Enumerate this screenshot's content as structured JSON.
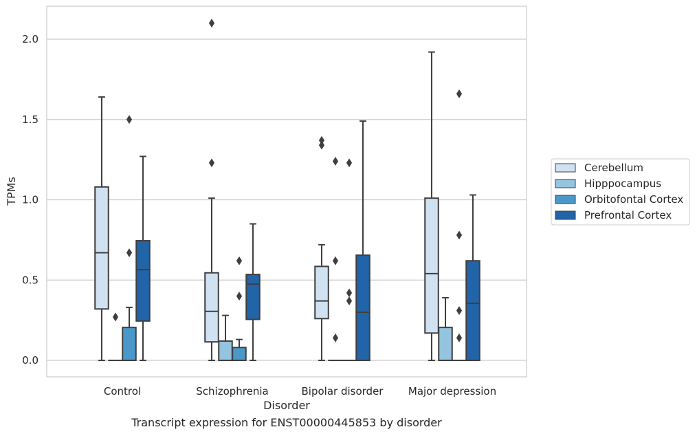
{
  "chart_data": {
    "type": "box",
    "xlabel": "Disorder",
    "ylabel": "TPMs",
    "ylim": [
      -0.1,
      2.2
    ],
    "yticks": [
      0.0,
      0.5,
      1.0,
      1.5,
      2.0
    ],
    "ytick_labels": [
      "0.0",
      "0.5",
      "1.0",
      "1.5",
      "2.0"
    ],
    "grid": "horizontal",
    "legend_position": "right",
    "categories": [
      "Control",
      "Schizophrenia",
      "Bipolar disorder",
      "Major depression"
    ],
    "series": [
      {
        "name": "Cerebellum",
        "color": "#d0e1f2",
        "boxes": [
          {
            "whislo": 0.0,
            "q1": 0.32,
            "med": 0.67,
            "q3": 1.08,
            "whishi": 1.64,
            "fliers": []
          },
          {
            "whislo": 0.0,
            "q1": 0.115,
            "med": 0.305,
            "q3": 0.545,
            "whishi": 1.01,
            "fliers": [
              1.23,
              2.1
            ]
          },
          {
            "whislo": 0.0,
            "q1": 0.26,
            "med": 0.37,
            "q3": 0.585,
            "whishi": 0.72,
            "fliers": [
              1.34,
              1.37
            ]
          },
          {
            "whislo": 0.0,
            "q1": 0.17,
            "med": 0.54,
            "q3": 1.01,
            "whishi": 1.92,
            "fliers": []
          }
        ]
      },
      {
        "name": "Hipppocampus",
        "color": "#94c4df",
        "boxes": [
          {
            "whislo": 0.0,
            "q1": 0.0,
            "med": 0.0,
            "q3": 0.0,
            "whishi": 0.0,
            "fliers": [
              0.27
            ]
          },
          {
            "whislo": 0.0,
            "q1": 0.0,
            "med": 0.0,
            "q3": 0.12,
            "whishi": 0.28,
            "fliers": []
          },
          {
            "whislo": 0.0,
            "q1": 0.0,
            "med": 0.0,
            "q3": 0.0,
            "whishi": 0.0,
            "fliers": [
              0.14,
              0.62,
              1.24
            ]
          },
          {
            "whislo": 0.0,
            "q1": 0.0,
            "med": 0.0,
            "q3": 0.205,
            "whishi": 0.39,
            "fliers": []
          }
        ]
      },
      {
        "name": "Orbitofontal Cortex",
        "color": "#4a98c9",
        "boxes": [
          {
            "whislo": 0.0,
            "q1": 0.0,
            "med": 0.0,
            "q3": 0.205,
            "whishi": 0.33,
            "fliers": [
              0.67,
              1.5
            ]
          },
          {
            "whislo": 0.0,
            "q1": 0.0,
            "med": 0.0,
            "q3": 0.08,
            "whishi": 0.13,
            "fliers": [
              0.4,
              0.62
            ]
          },
          {
            "whislo": 0.0,
            "q1": 0.0,
            "med": 0.0,
            "q3": 0.0,
            "whishi": 0.0,
            "fliers": [
              0.37,
              0.42,
              1.23
            ]
          },
          {
            "whislo": 0.0,
            "q1": 0.0,
            "med": 0.0,
            "q3": 0.0,
            "whishi": 0.0,
            "fliers": [
              0.14,
              0.31,
              0.78,
              1.66
            ]
          }
        ]
      },
      {
        "name": "Prefrontal Cortex",
        "color": "#2264a8",
        "boxes": [
          {
            "whislo": 0.0,
            "q1": 0.245,
            "med": 0.565,
            "q3": 0.745,
            "whishi": 1.27,
            "fliers": []
          },
          {
            "whislo": 0.0,
            "q1": 0.255,
            "med": 0.475,
            "q3": 0.535,
            "whishi": 0.85,
            "fliers": []
          },
          {
            "whislo": 0.0,
            "q1": 0.0,
            "med": 0.3,
            "q3": 0.655,
            "whishi": 1.49,
            "fliers": []
          },
          {
            "whislo": 0.0,
            "q1": 0.0,
            "med": 0.355,
            "q3": 0.62,
            "whishi": 1.03,
            "fliers": []
          }
        ]
      }
    ]
  },
  "caption": "Transcript expression for ENST00000445853 by disorder"
}
